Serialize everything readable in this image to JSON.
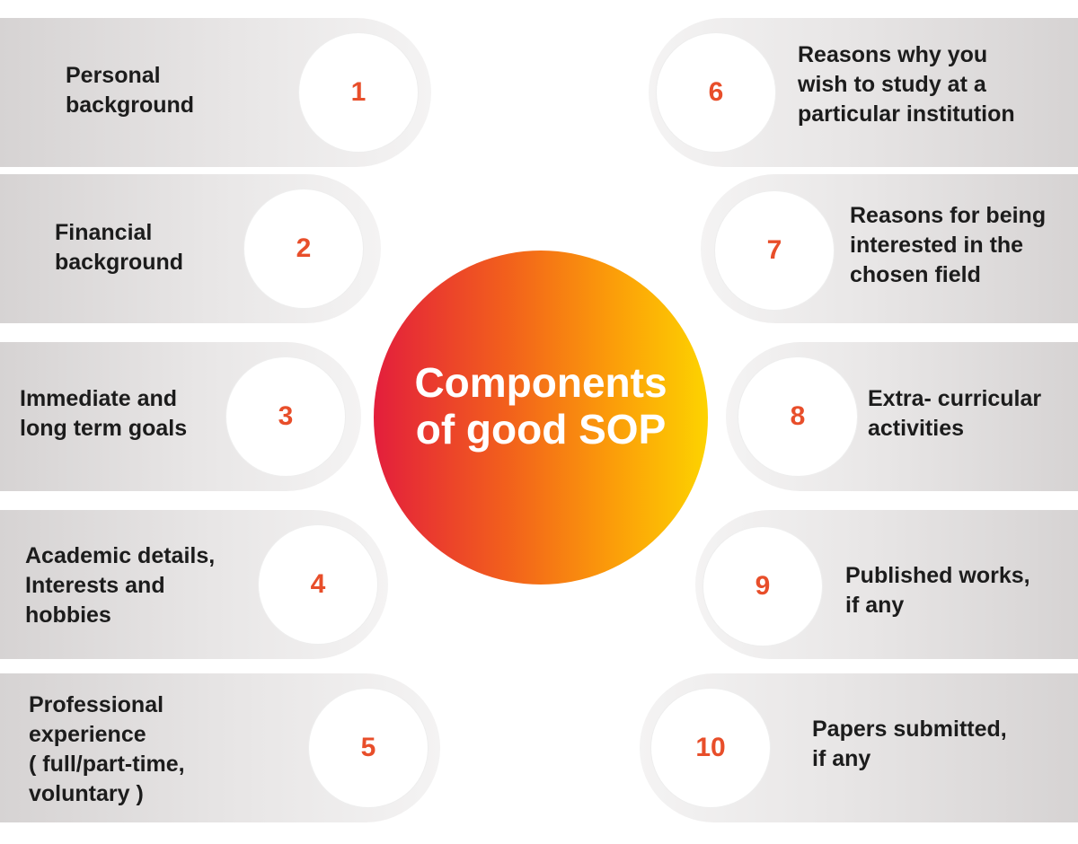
{
  "title": "Components\nof good SOP",
  "components": [
    {
      "number": "1",
      "label": "Personal\nbackground"
    },
    {
      "number": "2",
      "label": "Financial\nbackground"
    },
    {
      "number": "3",
      "label": "Immediate and\nlong term goals"
    },
    {
      "number": "4",
      "label": "Academic details,\nInterests and\nhobbies"
    },
    {
      "number": "5",
      "label": "Professional\nexperience\n( full/part-time,\nvoluntary )"
    },
    {
      "number": "6",
      "label": "Reasons why you\nwish to study at a\nparticular institution"
    },
    {
      "number": "7",
      "label": "Reasons for being\ninterested in the\nchosen field"
    },
    {
      "number": "8",
      "label": "Extra- curricular\nactivities"
    },
    {
      "number": "9",
      "label": "Published works,\nif any"
    },
    {
      "number": "10",
      "label": "Papers submitted,\nif any"
    }
  ],
  "colors": {
    "number": "#e84e2a",
    "gradient_start": "#e31e3c",
    "gradient_end": "#fdd300"
  }
}
